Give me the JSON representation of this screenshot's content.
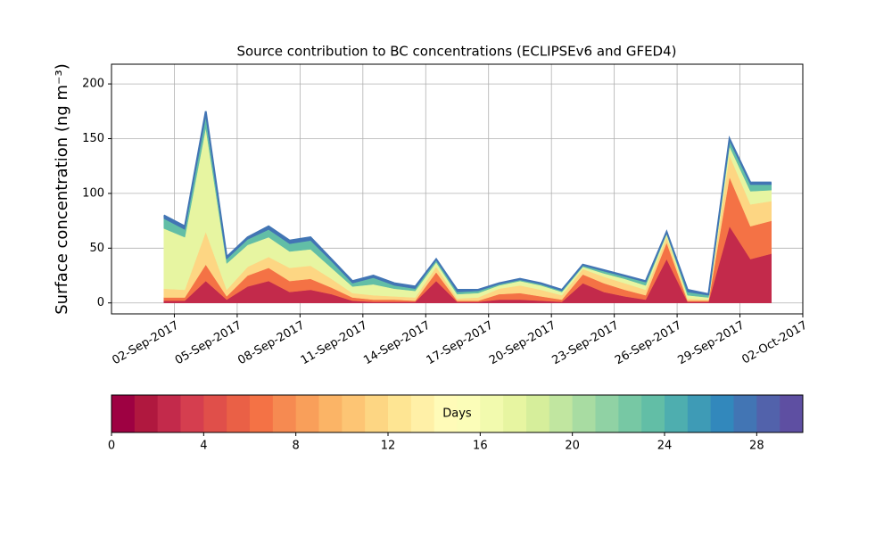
{
  "chart_data": [
    {
      "type": "stacked_area",
      "title": "Source contribution to BC concentrations (ECLIPSEv6 and GFED4)",
      "ylabel": "Surface concentration (ng m⁻³)",
      "x": [
        "01-Sep-2017",
        "02-Sep-2017",
        "03-Sep-2017",
        "04-Sep-2017",
        "05-Sep-2017",
        "06-Sep-2017",
        "07-Sep-2017",
        "08-Sep-2017",
        "09-Sep-2017",
        "10-Sep-2017",
        "11-Sep-2017",
        "12-Sep-2017",
        "13-Sep-2017",
        "14-Sep-2017",
        "15-Sep-2017",
        "16-Sep-2017",
        "17-Sep-2017",
        "18-Sep-2017",
        "19-Sep-2017",
        "20-Sep-2017",
        "21-Sep-2017",
        "22-Sep-2017",
        "23-Sep-2017",
        "24-Sep-2017",
        "25-Sep-2017",
        "26-Sep-2017",
        "27-Sep-2017",
        "28-Sep-2017",
        "29-Sep-2017",
        "30-Sep-2017"
      ],
      "series": [
        {
          "color": "#c32a4b",
          "values": [
            2,
            2,
            20,
            3,
            15,
            20,
            10,
            12,
            8,
            2,
            1,
            1,
            1,
            20,
            1,
            1,
            3,
            3,
            2,
            1,
            18,
            10,
            6,
            3,
            40,
            1,
            1,
            70,
            40,
            45
          ]
        },
        {
          "color": "#f47245",
          "values": [
            3,
            3,
            15,
            3,
            10,
            12,
            10,
            10,
            6,
            3,
            2,
            2,
            1,
            8,
            1,
            1,
            5,
            6,
            4,
            2,
            8,
            8,
            6,
            4,
            15,
            1,
            1,
            45,
            30,
            30
          ]
        },
        {
          "color": "#fdd683",
          "values": [
            8,
            7,
            30,
            6,
            8,
            10,
            12,
            12,
            8,
            4,
            4,
            3,
            3,
            5,
            2,
            3,
            5,
            7,
            6,
            4,
            5,
            6,
            6,
            5,
            5,
            2,
            1,
            20,
            20,
            18
          ]
        },
        {
          "color": "#e7f5a1",
          "values": [
            55,
            48,
            95,
            24,
            20,
            18,
            15,
            15,
            10,
            6,
            10,
            7,
            6,
            4,
            4,
            4,
            3,
            4,
            4,
            3,
            2,
            3,
            4,
            4,
            3,
            3,
            2,
            8,
            12,
            10
          ]
        },
        {
          "color": "#62bea6",
          "values": [
            9,
            7,
            10,
            4,
            5,
            7,
            7,
            8,
            6,
            3,
            6,
            3,
            2,
            2,
            2,
            2,
            1,
            1,
            1,
            1,
            1,
            2,
            2,
            3,
            1,
            3,
            2,
            5,
            6,
            5
          ]
        },
        {
          "color": "#4275b4",
          "values": [
            3,
            3,
            5,
            2,
            2,
            3,
            3,
            3,
            2,
            2,
            2,
            2,
            2,
            1,
            2,
            1,
            1,
            1,
            1,
            1,
            1,
            1,
            1,
            1,
            1,
            2,
            1,
            2,
            2,
            2
          ]
        }
      ],
      "xlim": [
        "30-Aug-2017",
        "02-Oct-2017"
      ],
      "xticks": [
        "02-Sep-2017",
        "05-Sep-2017",
        "08-Sep-2017",
        "11-Sep-2017",
        "14-Sep-2017",
        "17-Sep-2017",
        "20-Sep-2017",
        "23-Sep-2017",
        "26-Sep-2017",
        "29-Sep-2017",
        "02-Oct-2017"
      ],
      "ylim": [
        -10,
        218
      ],
      "yticks": [
        0,
        50,
        100,
        150,
        200
      ],
      "grid": true
    },
    {
      "type": "colorbar",
      "label": "Days",
      "bins": [
        0,
        1,
        2,
        3,
        4,
        5,
        6,
        7,
        8,
        9,
        10,
        11,
        12,
        13,
        14,
        15,
        16,
        17,
        18,
        19,
        20,
        21,
        22,
        23,
        24,
        25,
        26,
        27,
        28,
        29,
        30
      ],
      "colors": [
        "#9e0142",
        "#b0183f",
        "#c32a4b",
        "#d53e4f",
        "#e04f4a",
        "#ea6046",
        "#f47245",
        "#f68a51",
        "#f99f5a",
        "#fbb466",
        "#fdc574",
        "#fdd683",
        "#fee593",
        "#fff0a7",
        "#fffbb8",
        "#fbfdb8",
        "#f2faae",
        "#e7f5a1",
        "#d6ee9b",
        "#c1e6a0",
        "#a8dca2",
        "#90d2a4",
        "#77c8a4",
        "#62bea6",
        "#4eaeaf",
        "#3e9bb6",
        "#3288bc",
        "#4275b4",
        "#5262ab",
        "#5e4fa2"
      ],
      "xlim": [
        0,
        30
      ],
      "xticks": [
        0,
        4,
        8,
        12,
        16,
        20,
        24,
        28
      ]
    }
  ]
}
